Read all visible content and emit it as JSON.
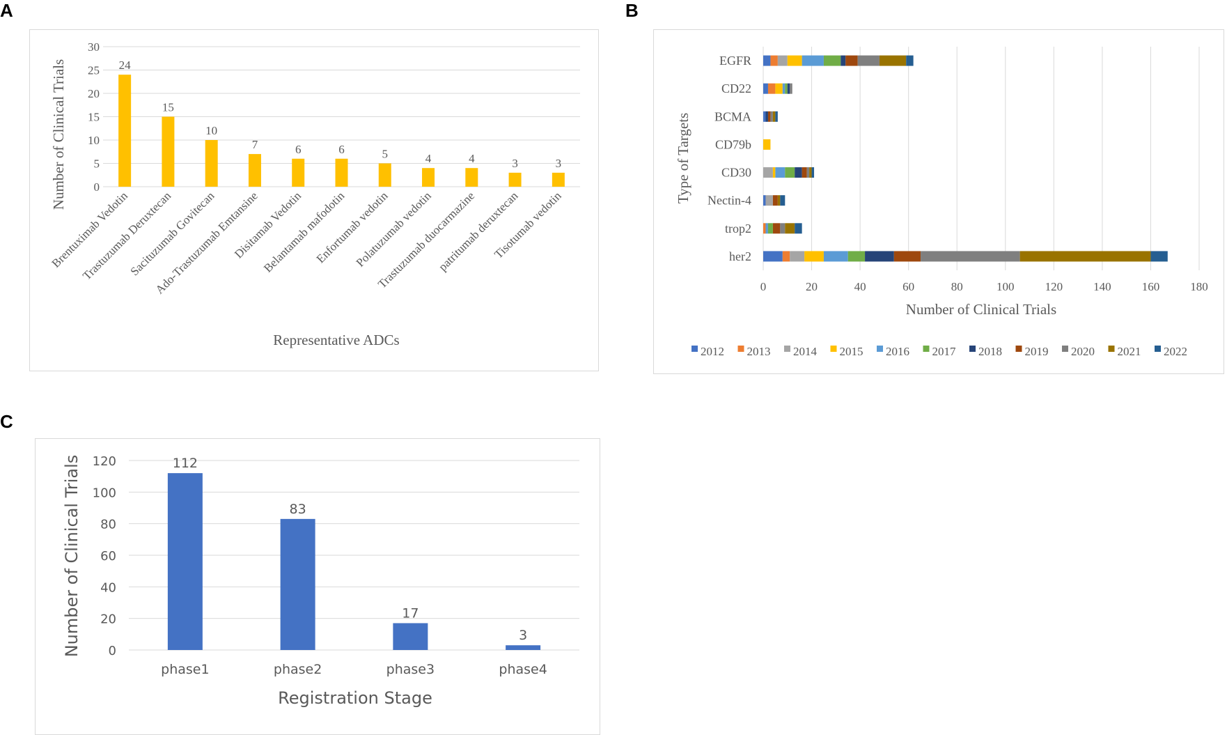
{
  "panels": {
    "a": {
      "letter": "A"
    },
    "b": {
      "letter": "B"
    },
    "c": {
      "letter": "C"
    }
  },
  "chart_data": [
    {
      "id": "A",
      "type": "bar",
      "title": "",
      "xlabel": "Representative ADCs",
      "ylabel": "Number of Clinical Trials",
      "ylim": [
        0,
        30
      ],
      "yticks": [
        0,
        5,
        10,
        15,
        20,
        25,
        30
      ],
      "categories": [
        "Brentuximab Vedotin",
        "Trastuzumab Deruxtecan",
        "Sacituzumab Govitecan",
        "Ado-Trastuzumab Emtansine",
        "Disitamab Vedotin",
        "Belantamab mafodotin",
        "Enfortumab vedotin",
        "Polatuzumab vedotin",
        "Trastuzumab duocarmazine",
        "patritumab deruxtecan",
        "Tisotumab vedotin"
      ],
      "values": [
        24,
        15,
        10,
        7,
        6,
        6,
        5,
        4,
        4,
        3,
        3
      ],
      "color": "#FFC000",
      "grid": true
    },
    {
      "id": "B",
      "type": "bar",
      "orientation": "horizontal",
      "stacked": true,
      "title": "",
      "xlabel": "Number of Clinical Trials",
      "ylabel": "Type of Targets",
      "xlim": [
        0,
        180
      ],
      "xticks": [
        0,
        20,
        40,
        60,
        80,
        100,
        120,
        140,
        160,
        180
      ],
      "categories": [
        "EGFR",
        "CD22",
        "BCMA",
        "CD79b",
        "CD30",
        "Nectin-4",
        "trop2",
        "her2"
      ],
      "legend_position": "bottom",
      "series": [
        {
          "name": "2012",
          "color": "#4472C4",
          "values": [
            3,
            2,
            1,
            0,
            0,
            1,
            0,
            8
          ]
        },
        {
          "name": "2013",
          "color": "#ED7D31",
          "values": [
            3,
            3,
            0,
            0,
            0,
            0,
            1,
            3
          ]
        },
        {
          "name": "2014",
          "color": "#A5A5A5",
          "values": [
            4,
            0,
            0,
            0,
            4,
            3,
            0,
            6
          ]
        },
        {
          "name": "2015",
          "color": "#FFC000",
          "values": [
            6,
            3,
            0,
            3,
            1,
            0,
            0,
            8
          ]
        },
        {
          "name": "2016",
          "color": "#5B9BD5",
          "values": [
            9,
            1,
            0,
            0,
            4,
            0,
            1,
            10
          ]
        },
        {
          "name": "2017",
          "color": "#70AD47",
          "values": [
            7,
            1,
            0,
            0,
            4,
            0,
            2,
            7
          ]
        },
        {
          "name": "2018",
          "color": "#264478",
          "values": [
            2,
            1,
            1,
            0,
            3,
            0,
            0,
            12
          ]
        },
        {
          "name": "2019",
          "color": "#9E480E",
          "values": [
            5,
            0,
            1,
            0,
            2,
            2,
            3,
            11
          ]
        },
        {
          "name": "2020",
          "color": "#7F7F7F",
          "values": [
            9,
            1,
            1,
            0,
            1,
            0,
            2,
            41
          ]
        },
        {
          "name": "2021",
          "color": "#997300",
          "values": [
            11,
            0,
            1,
            0,
            1,
            1,
            4,
            54
          ]
        },
        {
          "name": "2022",
          "color": "#255E91",
          "values": [
            3,
            0,
            1,
            0,
            1,
            2,
            3,
            7
          ]
        }
      ],
      "grid": true
    },
    {
      "id": "C",
      "type": "bar",
      "title": "",
      "xlabel": "Registration Stage",
      "ylabel": "Number of Clinical Trials",
      "ylim": [
        0,
        120
      ],
      "yticks": [
        0,
        20,
        40,
        60,
        80,
        100,
        120
      ],
      "categories": [
        "phase1",
        "phase2",
        "phase3",
        "phase4"
      ],
      "values": [
        112,
        83,
        17,
        3
      ],
      "color": "#4472C4",
      "grid": true
    }
  ]
}
